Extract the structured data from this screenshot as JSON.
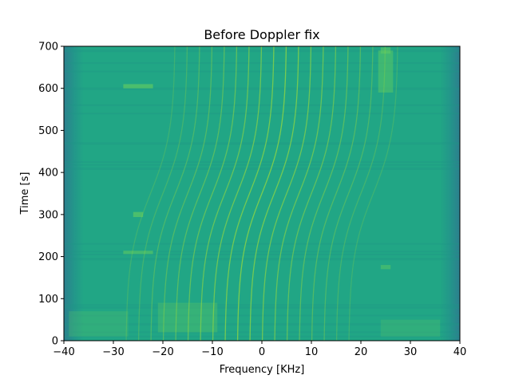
{
  "chart_data": {
    "type": "heatmap",
    "title": "Before Doppler fix",
    "xlabel": "Frequency [KHz]",
    "ylabel": "Time [s]",
    "xlim": [
      -40,
      40
    ],
    "ylim": [
      0,
      700
    ],
    "xticks": [
      -40,
      -30,
      -20,
      -10,
      0,
      10,
      20,
      30,
      40
    ],
    "yticks": [
      0,
      100,
      200,
      300,
      400,
      500,
      600,
      700
    ],
    "xtick_labels": [
      "−40",
      "−30",
      "−20",
      "−10",
      "0",
      "10",
      "20",
      "30",
      "40"
    ],
    "ytick_labels": [
      "0",
      "100",
      "200",
      "300",
      "400",
      "500",
      "600",
      "700"
    ],
    "grid": false,
    "colormap": "viridis",
    "colors": {
      "background": "#21a685",
      "edge": "#2c7f8e",
      "stripe_dark": "#1f9688",
      "tone_line": "#8fd644",
      "bright_patch": "#5ec962"
    },
    "tone_lines": {
      "count": 19,
      "spacing_khz": 2.5,
      "center_offset_khz_at_t0": -5,
      "center_offset_khz_at_t700": 5,
      "t_mid_s": 350
    }
  }
}
